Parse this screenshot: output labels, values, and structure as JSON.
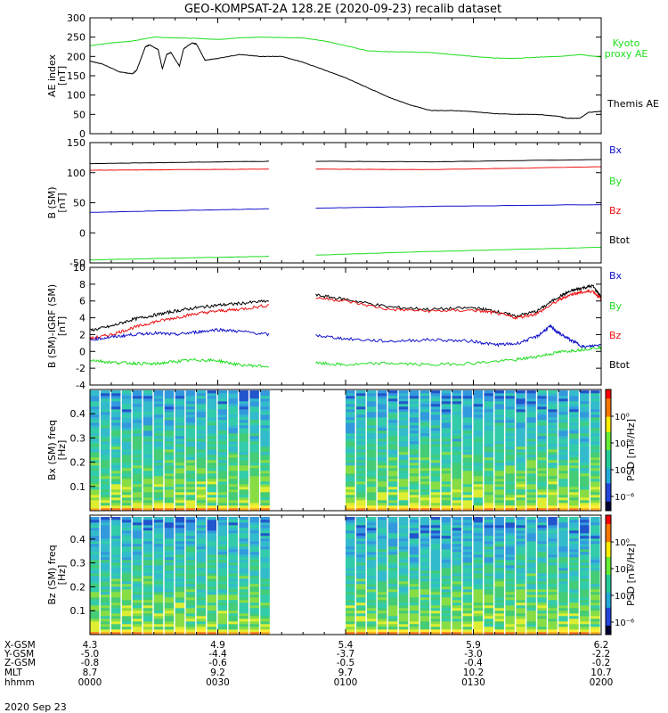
{
  "title": "GEO-KOMPSAT-2A 128.2E (2020-09-23) recalib dataset",
  "date_label": "2020 Sep 23",
  "colors": {
    "black": "#000000",
    "red": "#ee1111",
    "green": "#22dd22",
    "blue": "#1111cc"
  },
  "x_axis": {
    "time_ticks": [
      0,
      30,
      60,
      90,
      120
    ],
    "row_labels": [
      "X-GSM",
      "Y-GSM",
      "Z-GSM",
      "MLT",
      "hhmm"
    ],
    "columns": [
      [
        "4.3",
        "-5.0",
        "-0.8",
        "8.7",
        "0000"
      ],
      [
        "4.9",
        "-4.4",
        "-0.6",
        "9.2",
        "0030"
      ],
      [
        "5.4",
        "-3.7",
        "-0.5",
        "9.7",
        "0100"
      ],
      [
        "5.9",
        "-3.0",
        "-0.4",
        "10.2",
        "0130"
      ],
      [
        "6.2",
        "-2.2",
        "-0.2",
        "10.7",
        "0200"
      ]
    ]
  },
  "chart_data": [
    {
      "type": "line",
      "panel": "ae",
      "ylabel": "AE index [nT]",
      "ylim": [
        0,
        300
      ],
      "yticks": [
        0,
        50,
        100,
        150,
        200,
        250,
        300
      ],
      "x_unit": "minutes since 00:00 UT",
      "legend": [
        "Kyoto proxy AE",
        "Themis AE"
      ],
      "series": [
        {
          "name": "Kyoto proxy AE",
          "color": "green",
          "x": [
            0,
            5,
            10,
            15,
            20,
            25,
            30,
            35,
            40,
            45,
            50,
            55,
            60,
            65,
            70,
            75,
            80,
            85,
            90,
            95,
            100,
            105,
            110,
            115,
            120
          ],
          "y": [
            228,
            235,
            240,
            250,
            248,
            247,
            244,
            248,
            250,
            249,
            248,
            240,
            228,
            215,
            212,
            212,
            210,
            205,
            200,
            196,
            195,
            198,
            200,
            205,
            198
          ]
        },
        {
          "name": "Themis AE",
          "color": "black",
          "x": [
            0,
            3,
            7,
            10,
            11,
            13,
            14,
            16,
            17,
            18,
            19,
            21,
            22,
            24,
            25,
            27,
            30,
            35,
            40,
            45,
            50,
            55,
            60,
            65,
            70,
            75,
            80,
            85,
            90,
            95,
            100,
            105,
            110,
            112,
            115,
            117,
            120
          ],
          "y": [
            188,
            180,
            160,
            155,
            165,
            225,
            230,
            218,
            168,
            205,
            210,
            175,
            220,
            235,
            232,
            190,
            195,
            205,
            200,
            200,
            185,
            165,
            145,
            120,
            95,
            75,
            60,
            60,
            57,
            52,
            50,
            50,
            45,
            40,
            40,
            55,
            58
          ]
        }
      ]
    },
    {
      "type": "line",
      "panel": "b",
      "ylabel": "B (SM) [nT]",
      "ylim": [
        -50,
        150
      ],
      "yticks": [
        -50,
        0,
        50,
        100,
        150
      ],
      "legend": [
        "Bx",
        "By",
        "Bz",
        "Btot"
      ],
      "gap_minutes": [
        42,
        53
      ],
      "series": [
        {
          "name": "Btot",
          "color": "black",
          "x": [
            0,
            20,
            42,
            53,
            80,
            120
          ],
          "y": [
            115,
            117,
            119,
            119,
            118,
            122
          ]
        },
        {
          "name": "Bx",
          "color": "red",
          "x": [
            0,
            20,
            42,
            53,
            80,
            120
          ],
          "y": [
            104,
            105,
            106,
            106,
            105,
            110
          ]
        },
        {
          "name": "Bz",
          "color": "blue",
          "x": [
            0,
            20,
            42,
            53,
            80,
            120
          ],
          "y": [
            34,
            37,
            40,
            41,
            44,
            47
          ]
        },
        {
          "name": "By",
          "color": "green",
          "x": [
            0,
            20,
            42,
            53,
            80,
            120
          ],
          "y": [
            -45,
            -42,
            -39,
            -37,
            -31,
            -24
          ]
        }
      ]
    },
    {
      "type": "line",
      "panel": "dB",
      "ylabel": "B (SM)-IGRF (SM) [nT]",
      "ylim": [
        -4,
        10
      ],
      "yticks": [
        -4,
        -2,
        0,
        2,
        4,
        6,
        8,
        10
      ],
      "legend": [
        "Bx",
        "By",
        "Bz",
        "Btot"
      ],
      "gap_minutes": [
        42,
        53
      ],
      "series": [
        {
          "name": "Btot",
          "color": "black",
          "x": [
            0,
            5,
            10,
            15,
            20,
            25,
            30,
            35,
            42,
            53,
            60,
            70,
            80,
            90,
            95,
            100,
            105,
            110,
            113,
            115,
            118,
            120
          ],
          "y": [
            2.5,
            3.0,
            3.8,
            4.3,
            4.8,
            5.2,
            5.5,
            5.7,
            6.0,
            6.7,
            6.2,
            5.3,
            5.0,
            5.2,
            4.8,
            4.2,
            4.8,
            6.5,
            7.2,
            7.5,
            7.8,
            6.5
          ]
        },
        {
          "name": "Bx",
          "color": "red",
          "x": [
            0,
            5,
            10,
            15,
            20,
            25,
            30,
            35,
            42,
            53,
            60,
            70,
            80,
            90,
            95,
            100,
            105,
            110,
            113,
            115,
            118,
            120
          ],
          "y": [
            1.5,
            2.0,
            2.8,
            3.5,
            4.0,
            4.5,
            4.8,
            5.0,
            5.5,
            6.4,
            6.0,
            5.0,
            4.8,
            4.9,
            4.6,
            4.0,
            4.5,
            6.1,
            6.8,
            7.0,
            7.2,
            6.2
          ]
        },
        {
          "name": "Bz",
          "color": "blue",
          "x": [
            0,
            5,
            10,
            15,
            20,
            25,
            30,
            35,
            42,
            53,
            60,
            70,
            80,
            90,
            95,
            100,
            105,
            108,
            110,
            113,
            116,
            120
          ],
          "y": [
            1.4,
            1.7,
            2.0,
            2.2,
            2.0,
            2.3,
            2.6,
            2.4,
            2.0,
            1.9,
            1.5,
            1.2,
            1.4,
            1.2,
            0.8,
            0.9,
            1.8,
            3.0,
            2.2,
            1.3,
            0.5,
            0.8
          ]
        },
        {
          "name": "By",
          "color": "green",
          "x": [
            0,
            5,
            10,
            15,
            20,
            25,
            30,
            35,
            42,
            53,
            60,
            70,
            80,
            90,
            100,
            105,
            110,
            115,
            120
          ],
          "y": [
            -1.0,
            -1.3,
            -1.4,
            -1.5,
            -1.2,
            -1.0,
            -1.1,
            -1.6,
            -1.8,
            -1.4,
            -1.6,
            -1.4,
            -1.6,
            -1.4,
            -1.0,
            -0.6,
            -0.1,
            0.2,
            0.5
          ]
        }
      ]
    },
    {
      "type": "heatmap",
      "panel": "bx_spec",
      "ylabel": "Bx (SM) freq [Hz]",
      "ylim": [
        0,
        0.5
      ],
      "yticks": [
        0.1,
        0.2,
        0.3,
        0.4
      ],
      "colorbar_label": "PSD [nT²/Hz]",
      "colorbar_ticks": [
        "10⁰",
        "10⁻²",
        "10⁻⁴",
        "10⁻⁶"
      ],
      "gap_minutes": [
        42,
        58
      ]
    },
    {
      "type": "heatmap",
      "panel": "bz_spec",
      "ylabel": "Bz (SM) freq [Hz]",
      "ylim": [
        0,
        0.5
      ],
      "yticks": [
        0.1,
        0.2,
        0.3,
        0.4
      ],
      "colorbar_label": "PSD [nT²/Hz]",
      "colorbar_ticks": [
        "10⁰",
        "10⁻²",
        "10⁻⁴",
        "10⁻⁶"
      ],
      "gap_minutes": [
        42,
        58
      ]
    }
  ]
}
